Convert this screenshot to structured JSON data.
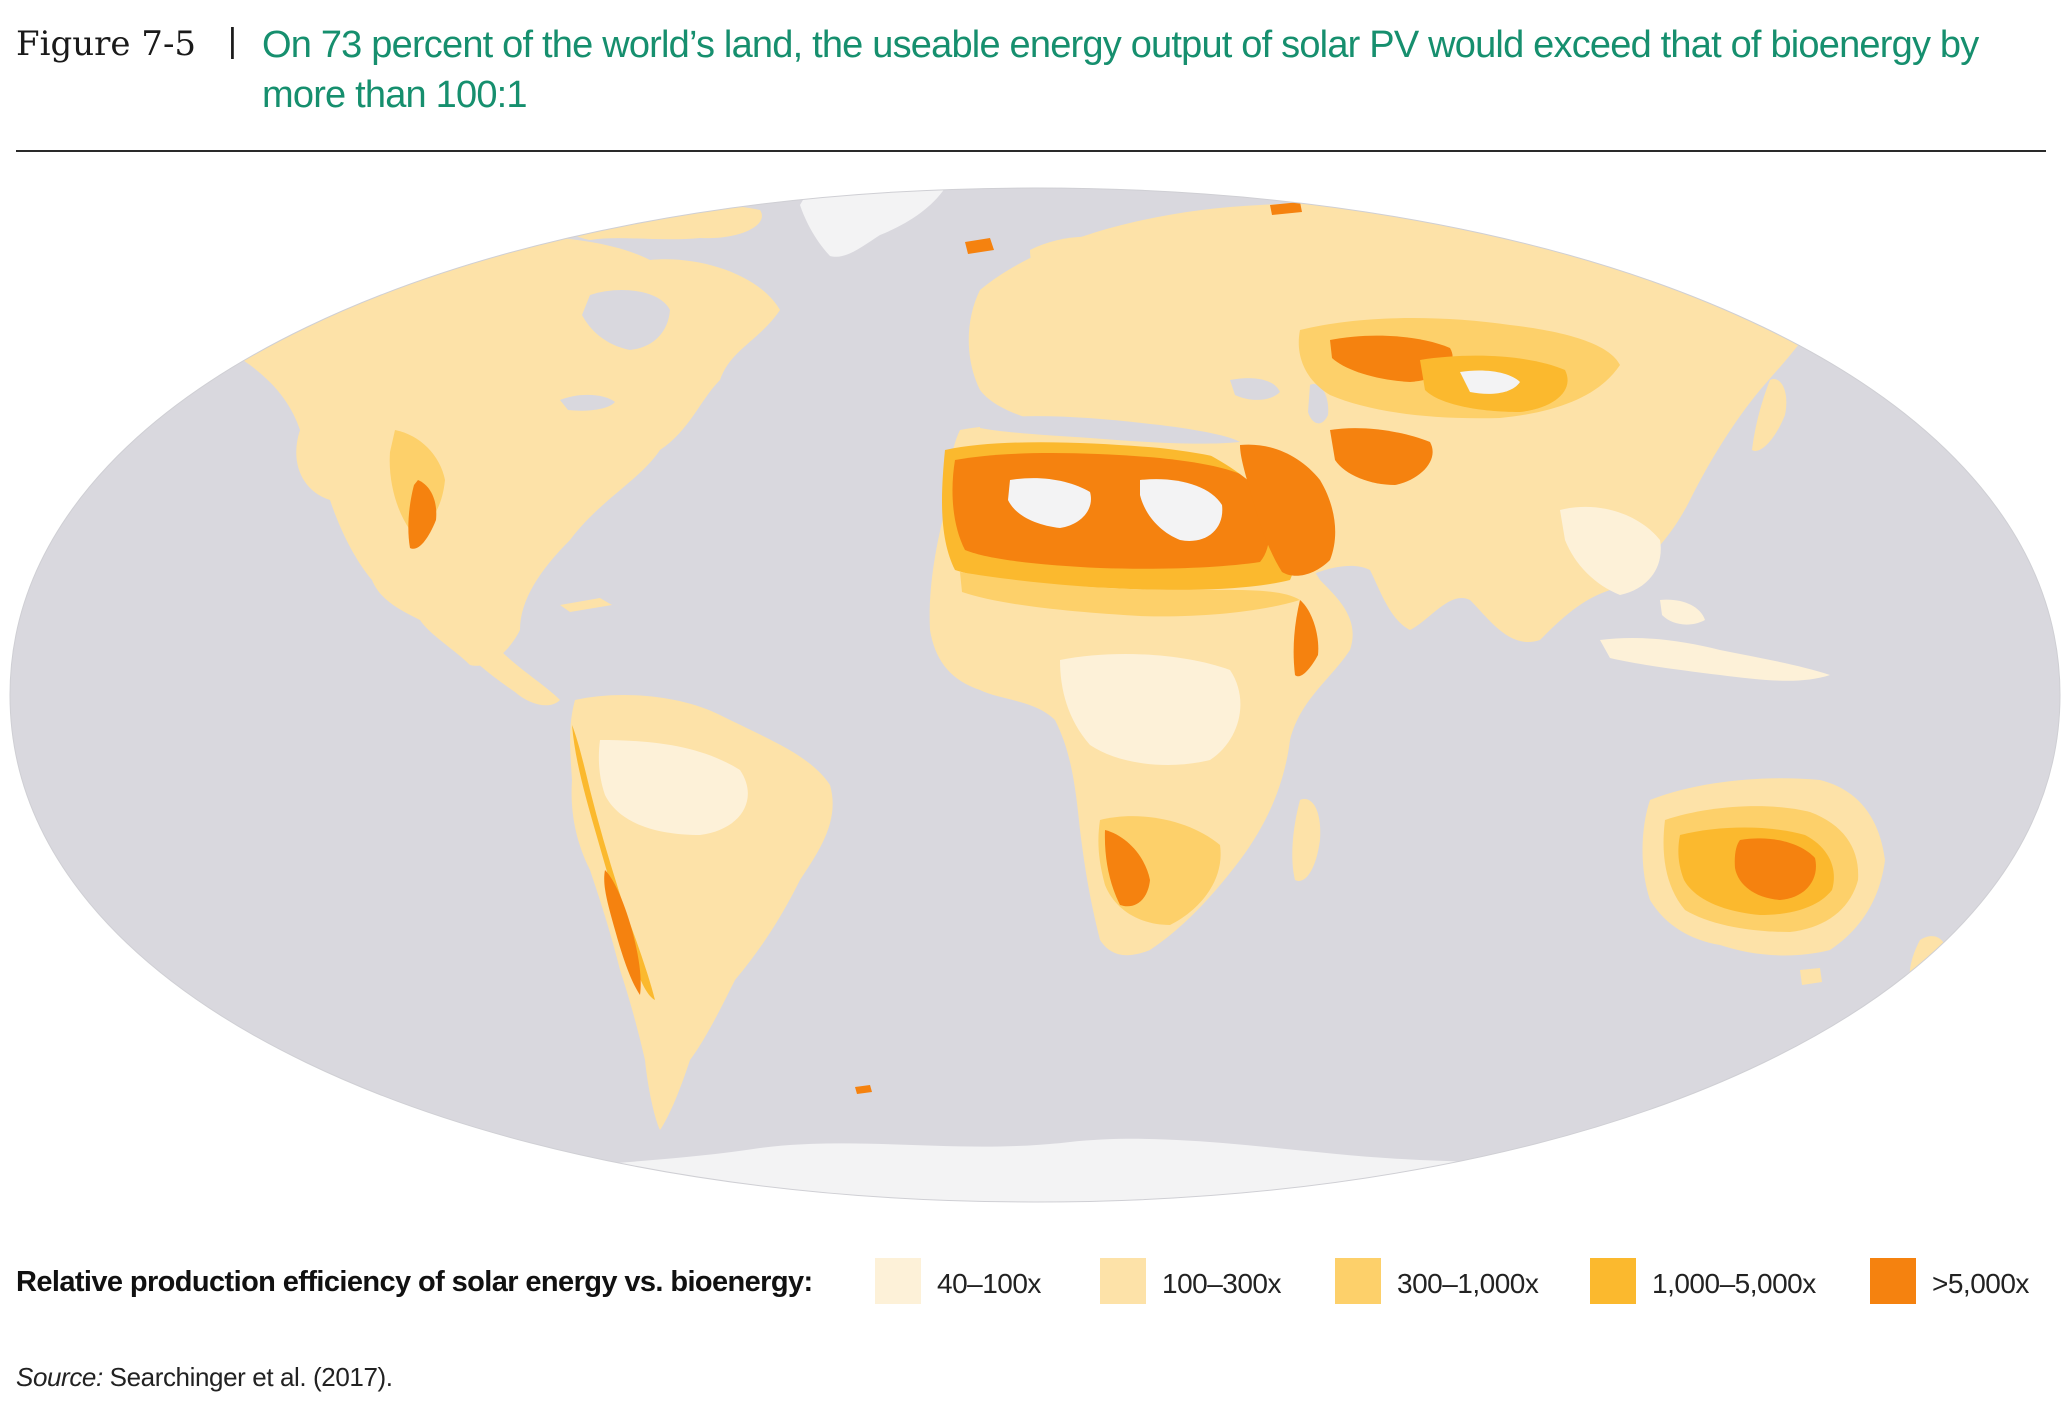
{
  "header": {
    "figure_label": "Figure 7-5",
    "separator": "|",
    "title": "On 73 percent of the world’s land, the useable energy output of solar PV would exceed that of bioenergy by more than 100:1"
  },
  "legend": {
    "title": "Relative production efficiency of solar energy vs. bioenergy:",
    "items": [
      {
        "label": "40–100x",
        "color": "#fdf1d8"
      },
      {
        "label": "100–300x",
        "color": "#fde2a8"
      },
      {
        "label": "300–1,000x",
        "color": "#fdd06a"
      },
      {
        "label": "1,000–5,000x",
        "color": "#fbb92e"
      },
      {
        "label": ">5,000x",
        "color": "#f5820f"
      }
    ]
  },
  "map": {
    "ocean_color": "#d9d8de",
    "ice_color": "#f3f3f4",
    "projection": "Equal Earth"
  },
  "source": {
    "prefix": "Source:",
    "text": "Searchinger et al. (2017)."
  }
}
